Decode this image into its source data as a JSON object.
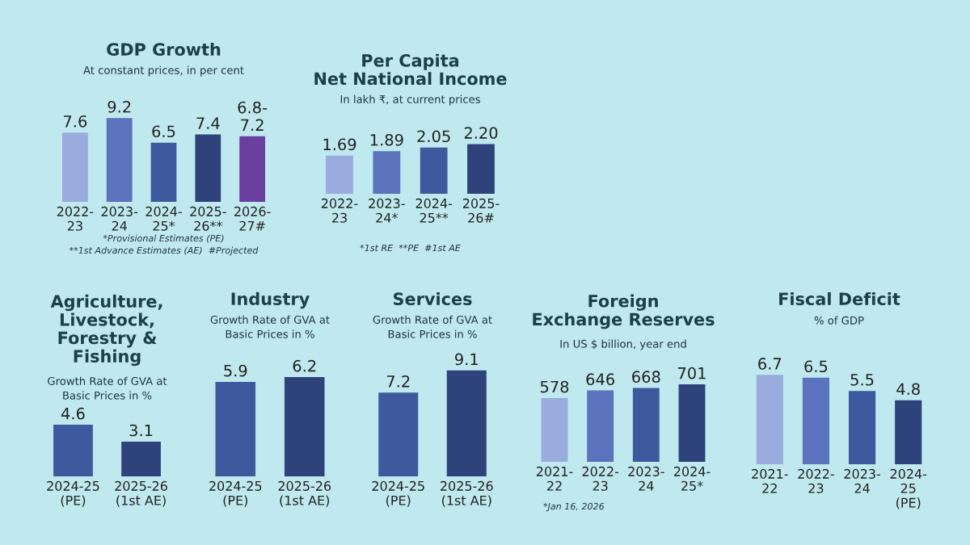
{
  "chart_data": [
    {
      "type": "bar",
      "title": "GDP Growth",
      "subtitle": "At constant prices, in per cent",
      "categories": [
        "2022-23",
        "2023-24",
        "2024-25*",
        "2025-26**",
        "2026-27#"
      ],
      "values": [
        7.6,
        9.2,
        6.5,
        7.4,
        7.2
      ],
      "value_labels": [
        "7.6",
        "9.2",
        "6.5",
        "7.4",
        "6.8-7.2"
      ],
      "colors": [
        "#9aabde",
        "#5b72bd",
        "#3e5a9e",
        "#2e437c",
        "#6a3fa0"
      ],
      "annotations": [
        "*Provisional Estimates (PE)",
        "**1st Advance Estimates (AE)  #Projected"
      ]
    },
    {
      "type": "bar",
      "title": "Per Capita\nNet National Income",
      "subtitle": "In lakh ₹, at current prices",
      "categories": [
        "2022-23",
        "2023-24*",
        "2024-25**",
        "2025-26#"
      ],
      "values": [
        1.69,
        1.89,
        2.05,
        2.2
      ],
      "value_labels": [
        "1.69",
        "1.89",
        "2.05",
        "2.20"
      ],
      "colors": [
        "#9aabde",
        "#5b72bd",
        "#3e5a9e",
        "#2e437c"
      ],
      "annotations": [
        "*1st RE  **PE  #1st AE"
      ]
    },
    {
      "type": "bar",
      "title": "Agriculture,\nLivestock,\nForestry &\nFishing",
      "subtitle": "Growth Rate of GVA at\nBasic Prices in %",
      "categories": [
        "2024-25 (PE)",
        "2025-26 (1st AE)"
      ],
      "values": [
        4.6,
        3.1
      ],
      "colors": [
        "#3e5a9e",
        "#2e437c"
      ],
      "data_labels": true
    },
    {
      "type": "bar",
      "title": "Industry",
      "subtitle": "Growth Rate of GVA at\nBasic Prices in %",
      "categories": [
        "2024-25 (PE)",
        "2025-26 (1st AE)"
      ],
      "values": [
        5.9,
        6.2
      ],
      "colors": [
        "#3e5a9e",
        "#2e437c"
      ],
      "data_labels": true
    },
    {
      "type": "bar",
      "title": "Services",
      "subtitle": "Growth Rate of GVA at\nBasic Prices in %",
      "categories": [
        "2024-25 (PE)",
        "2025-26 (1st AE)"
      ],
      "values": [
        7.2,
        9.1
      ],
      "colors": [
        "#3e5a9e",
        "#2e437c"
      ],
      "data_labels": true
    },
    {
      "type": "bar",
      "title": "Foreign\nExchange Reserves",
      "subtitle": "In US $ billion, year end",
      "categories": [
        "2021-22",
        "2022-23",
        "2023-24",
        "2024-25*"
      ],
      "values": [
        578,
        646,
        668,
        701
      ],
      "colors": [
        "#9aabde",
        "#5b72bd",
        "#3e5a9e",
        "#2e437c"
      ],
      "data_labels": true,
      "annotations": [
        "*Jan 16, 2026"
      ]
    },
    {
      "type": "bar",
      "title": "Fiscal Deficit",
      "subtitle": "% of GDP",
      "categories": [
        "2021-22",
        "2022-23",
        "2023-24",
        "2024-25 (PE)"
      ],
      "values": [
        6.7,
        6.5,
        5.5,
        4.8
      ],
      "colors": [
        "#9aabde",
        "#5b72bd",
        "#3e5a9e",
        "#2e437c"
      ],
      "data_labels": true
    }
  ]
}
